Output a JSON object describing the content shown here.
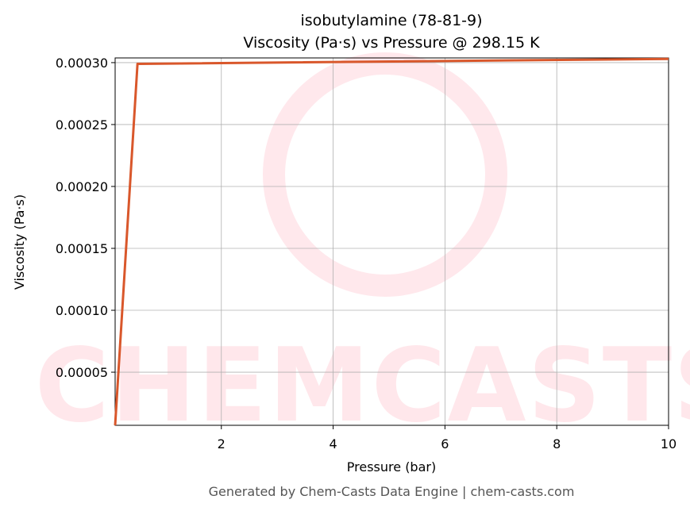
{
  "chart_data": {
    "type": "line",
    "title": "isobutylamine (78-81-9)",
    "subtitle": "Viscosity (Pa·s) vs Pressure @ 298.15 K",
    "x_label": "Pressure (bar)",
    "y_label": "Viscosity (Pa·s)",
    "footer": "Generated by Chem-Casts Data Engine | chem-casts.com",
    "watermark": "CHEMCASTS",
    "x": [
      0.1,
      0.5,
      10
    ],
    "series": [
      {
        "name": "Viscosity",
        "color": "#d9572b",
        "values": [
          7.1e-06,
          0.000299,
          0.000303
        ]
      }
    ],
    "xlim": [
      0.1,
      10
    ],
    "xticks": [
      2,
      4,
      6,
      8,
      10
    ],
    "ylim": [
      7.1e-06,
      0.0003038
    ],
    "yticks": [
      {
        "value": 5e-05,
        "label": "0.00005"
      },
      {
        "value": 0.0001,
        "label": "0.00010"
      },
      {
        "value": 0.00015,
        "label": "0.00015"
      },
      {
        "value": 0.0002,
        "label": "0.00020"
      },
      {
        "value": 0.00025,
        "label": "0.00025"
      },
      {
        "value": 0.0003,
        "label": "0.00030"
      }
    ],
    "grid": true
  }
}
